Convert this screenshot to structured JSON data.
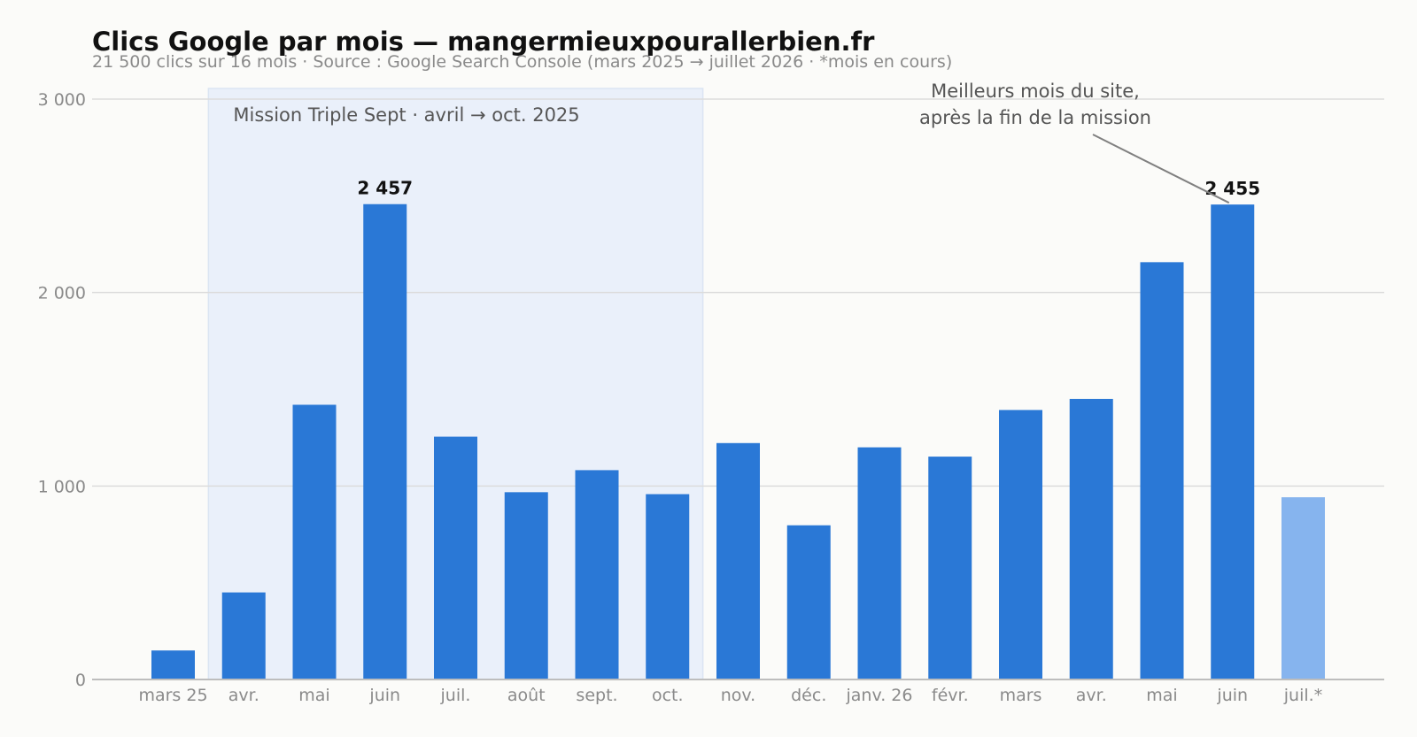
{
  "header": {
    "title": "Clics Google par mois — mangermieuxpourallerbien.fr",
    "subtitle": "21 500 clics sur 16 mois · Source : Google Search Console (mars 2025 → juillet 2026 · *mois en cours)"
  },
  "chart_data": {
    "type": "bar",
    "categories": [
      "mars 25",
      "avr.",
      "mai",
      "juin",
      "juil.",
      "août",
      "sept.",
      "oct.",
      "nov.",
      "déc.",
      "janv. 26",
      "févr.",
      "mars",
      "avr.",
      "mai",
      "juin",
      "juil.*"
    ],
    "values": [
      150,
      450,
      1420,
      2457,
      1255,
      968,
      1082,
      958,
      1222,
      797,
      1200,
      1152,
      1393,
      1450,
      2157,
      2455,
      942
    ],
    "partial_month_index": 16,
    "ylim": [
      0,
      3000
    ],
    "yticks": [
      0,
      1000,
      2000,
      3000
    ],
    "ytick_labels": [
      "0",
      "1 000",
      "2 000",
      "3 000"
    ],
    "grid": true,
    "xlabel": "",
    "ylabel": "",
    "data_labels": [
      {
        "index": 3,
        "text": "2 457"
      },
      {
        "index": 15,
        "text": "2 455"
      }
    ],
    "highlight_band": {
      "from_index": 1,
      "to_index": 7,
      "label": "Mission Triple Sept · avril → oct. 2025"
    },
    "annotation": {
      "lines": [
        "Meilleurs mois du site,",
        "après la fin de la mission"
      ],
      "points_to_index": 15
    },
    "colors": {
      "bar": "#2a78d6",
      "bar_partial": "#86b4ee",
      "band": "#eaf0fa",
      "band_edge": "#dbe5f3",
      "grid": "#dcdcdc",
      "axis": "#bdbdbd",
      "annotation_line": "#808080"
    }
  }
}
